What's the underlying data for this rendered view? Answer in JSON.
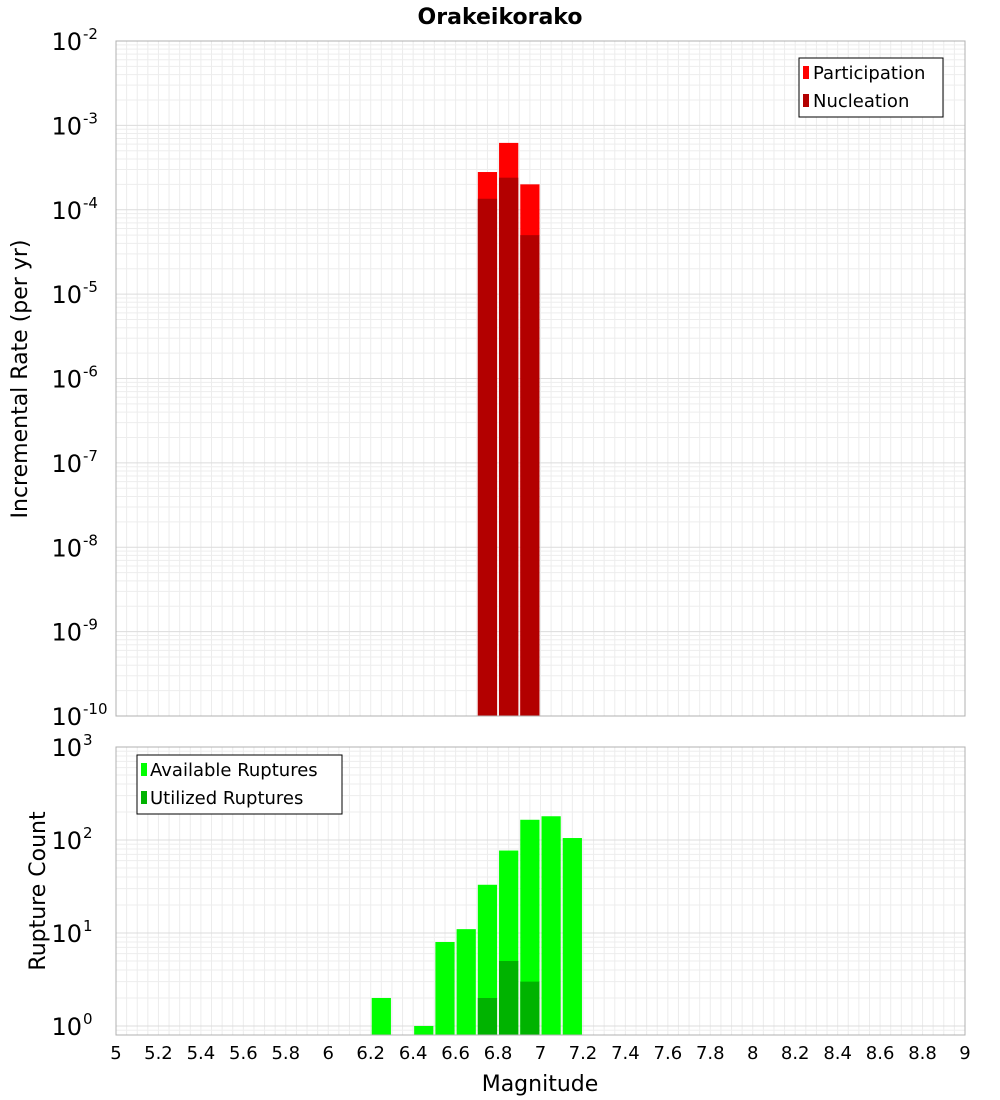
{
  "chart_data": [
    {
      "type": "bar",
      "title": "Orakeikorako",
      "xlabel": "Magnitude",
      "ylabel": "Incremental Rate (per yr)",
      "y_scale": "log",
      "xlim": [
        5,
        9
      ],
      "ylim": [
        1e-10,
        0.01
      ],
      "y_tick_exponents": [
        -10,
        -9,
        -8,
        -7,
        -6,
        -5,
        -4,
        -3,
        -2
      ],
      "legend": {
        "placement": "top-right"
      },
      "series": [
        {
          "name": "Participation",
          "color": "#ff0000",
          "bins": [
            {
              "x": 6.75,
              "value": 0.00028
            },
            {
              "x": 6.85,
              "value": 0.00062
            },
            {
              "x": 6.95,
              "value": 0.0002
            }
          ]
        },
        {
          "name": "Nucleation",
          "color": "#b30000",
          "bins": [
            {
              "x": 6.75,
              "value": 0.000135
            },
            {
              "x": 6.85,
              "value": 0.00024
            },
            {
              "x": 6.95,
              "value": 5e-05
            }
          ]
        }
      ]
    },
    {
      "type": "bar",
      "xlabel": "Magnitude",
      "ylabel": "Rupture Count",
      "y_scale": "log",
      "xlim": [
        5,
        9
      ],
      "ylim": [
        0.8,
        1000
      ],
      "y_tick_exponents": [
        0,
        1,
        2,
        3
      ],
      "x_ticks": [
        "5",
        "5.2",
        "5.4",
        "5.6",
        "5.8",
        "6",
        "6.2",
        "6.4",
        "6.6",
        "6.8",
        "7",
        "7.2",
        "7.4",
        "7.6",
        "7.8",
        "8",
        "8.2",
        "8.4",
        "8.6",
        "8.8",
        "9"
      ],
      "legend": {
        "placement": "top-left"
      },
      "series": [
        {
          "name": "Available Ruptures",
          "color": "#00ff00",
          "bins": [
            {
              "x": 6.25,
              "value": 2
            },
            {
              "x": 6.45,
              "value": 1
            },
            {
              "x": 6.55,
              "value": 8
            },
            {
              "x": 6.65,
              "value": 11
            },
            {
              "x": 6.75,
              "value": 33
            },
            {
              "x": 6.85,
              "value": 77
            },
            {
              "x": 6.95,
              "value": 165
            },
            {
              "x": 7.05,
              "value": 180
            },
            {
              "x": 7.15,
              "value": 105
            }
          ]
        },
        {
          "name": "Utilized Ruptures",
          "color": "#00b300",
          "bins": [
            {
              "x": 6.75,
              "value": 2
            },
            {
              "x": 6.85,
              "value": 5
            },
            {
              "x": 6.95,
              "value": 3
            }
          ]
        }
      ]
    }
  ]
}
